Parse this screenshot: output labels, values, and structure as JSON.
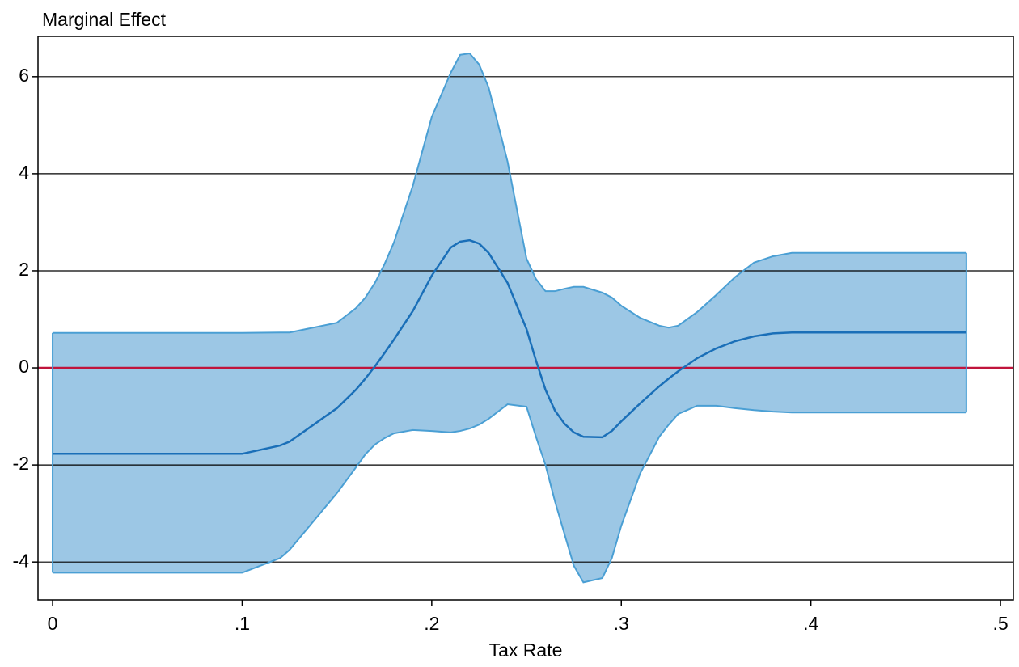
{
  "chart_data": {
    "type": "line",
    "y_label": "Marginal Effect",
    "x_label": "Tax Rate",
    "x": [
      0,
      0.1,
      0.12,
      0.125,
      0.15,
      0.16,
      0.165,
      0.17,
      0.175,
      0.18,
      0.19,
      0.2,
      0.21,
      0.215,
      0.22,
      0.225,
      0.23,
      0.24,
      0.25,
      0.255,
      0.26,
      0.265,
      0.27,
      0.275,
      0.28,
      0.29,
      0.295,
      0.3,
      0.31,
      0.32,
      0.325,
      0.33,
      0.34,
      0.35,
      0.36,
      0.37,
      0.38,
      0.39,
      0.482
    ],
    "series": [
      {
        "color": "#1a6fb8",
        "values": [
          -1.77,
          -1.77,
          -1.6,
          -1.52,
          -0.83,
          -0.45,
          -0.22,
          0.03,
          0.3,
          0.58,
          1.17,
          1.9,
          2.48,
          2.6,
          2.63,
          2.56,
          2.37,
          1.75,
          0.8,
          0.15,
          -0.45,
          -0.88,
          -1.15,
          -1.33,
          -1.42,
          -1.43,
          -1.3,
          -1.1,
          -0.73,
          -0.38,
          -0.22,
          -0.07,
          0.2,
          0.4,
          0.55,
          0.65,
          0.71,
          0.73,
          0.73
        ]
      }
    ],
    "band": {
      "color": "#4a9fd4",
      "fill": "#9cc7e5",
      "upper": [
        0.72,
        0.72,
        0.73,
        0.73,
        0.93,
        1.23,
        1.45,
        1.75,
        2.13,
        2.58,
        3.75,
        5.17,
        6.08,
        6.45,
        6.48,
        6.25,
        5.78,
        4.25,
        2.25,
        1.83,
        1.58,
        1.58,
        1.63,
        1.67,
        1.67,
        1.55,
        1.45,
        1.28,
        1.03,
        0.87,
        0.83,
        0.87,
        1.15,
        1.5,
        1.87,
        2.17,
        2.3,
        2.37,
        2.37
      ],
      "lower": [
        -4.22,
        -4.22,
        -3.92,
        -3.75,
        -2.58,
        -2.05,
        -1.78,
        -1.58,
        -1.45,
        -1.35,
        -1.28,
        -1.3,
        -1.33,
        -1.3,
        -1.25,
        -1.17,
        -1.05,
        -0.75,
        -0.8,
        -1.42,
        -2.0,
        -2.75,
        -3.42,
        -4.08,
        -4.42,
        -4.33,
        -3.92,
        -3.25,
        -2.17,
        -1.42,
        -1.17,
        -0.95,
        -0.78,
        -0.78,
        -0.83,
        -0.87,
        -0.9,
        -0.92,
        -0.92
      ]
    },
    "xlim": [
      -0.0077,
      0.5068
    ],
    "ylim": [
      -4.78,
      6.83
    ],
    "xticks": [
      0,
      {
        "value": 0.1,
        "label": ".1"
      },
      {
        "value": 0.2,
        "label": ".2"
      },
      {
        "value": 0.3,
        "label": ".3"
      },
      {
        "value": 0.4,
        "label": ".4"
      },
      {
        "value": 0.5,
        "label": ".5"
      }
    ],
    "yticks": [
      -4,
      -2,
      0,
      2,
      4,
      6
    ],
    "grid": true,
    "zero_line_color": "#c0143c"
  }
}
